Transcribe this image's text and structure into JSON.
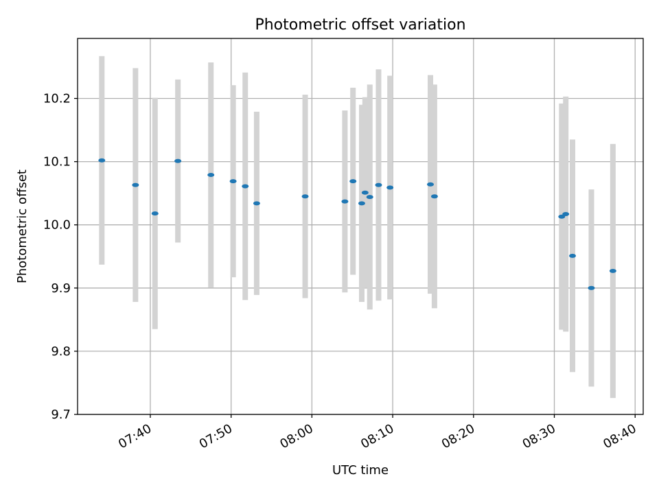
{
  "chart_data": {
    "type": "scatter",
    "title": "Photometric offset variation",
    "xlabel": "UTC time",
    "ylabel": "Photometric offset",
    "ylim": [
      9.7,
      10.295
    ],
    "xlim": [
      "07:31:00",
      "08:41:00"
    ],
    "grid": true,
    "x_ticks": [
      "07:40",
      "07:50",
      "08:00",
      "08:10",
      "08:20",
      "08:30",
      "08:40"
    ],
    "y_ticks": [
      9.7,
      9.8,
      9.9,
      10.0,
      10.1,
      10.2
    ],
    "y_tick_labels": [
      "9.7",
      "9.8",
      "9.9",
      "10.0",
      "10.1",
      "10.2"
    ],
    "point_color": "#1f77b4",
    "error_bar_color": "#d3d3d3",
    "points": [
      {
        "x": "07:34:00",
        "y": 10.102,
        "yerr": 0.165
      },
      {
        "x": "07:38:10",
        "y": 10.063,
        "yerr": 0.185
      },
      {
        "x": "07:40:35",
        "y": 10.018,
        "yerr": 0.183
      },
      {
        "x": "07:43:25",
        "y": 10.101,
        "yerr": 0.129
      },
      {
        "x": "07:47:30",
        "y": 10.079,
        "yerr": 0.178
      },
      {
        "x": "07:50:15",
        "y": 10.069,
        "yerr": 0.152
      },
      {
        "x": "07:51:45",
        "y": 10.061,
        "yerr": 0.18
      },
      {
        "x": "07:53:10",
        "y": 10.034,
        "yerr": 0.145
      },
      {
        "x": "07:59:10",
        "y": 10.045,
        "yerr": 0.161
      },
      {
        "x": "08:04:05",
        "y": 10.037,
        "yerr": 0.144
      },
      {
        "x": "08:05:05",
        "y": 10.069,
        "yerr": 0.148
      },
      {
        "x": "08:06:10",
        "y": 10.034,
        "yerr": 0.156
      },
      {
        "x": "08:06:35",
        "y": 10.051,
        "yerr": 0.151
      },
      {
        "x": "08:07:10",
        "y": 10.044,
        "yerr": 0.178
      },
      {
        "x": "08:08:15",
        "y": 10.063,
        "yerr": 0.183
      },
      {
        "x": "08:09:40",
        "y": 10.059,
        "yerr": 0.177
      },
      {
        "x": "08:14:40",
        "y": 10.064,
        "yerr": 0.173
      },
      {
        "x": "08:15:10",
        "y": 10.045,
        "yerr": 0.177
      },
      {
        "x": "08:30:55",
        "y": 10.013,
        "yerr": 0.179
      },
      {
        "x": "08:31:25",
        "y": 10.017,
        "yerr": 0.186
      },
      {
        "x": "08:32:15",
        "y": 9.951,
        "yerr": 0.184
      },
      {
        "x": "08:34:35",
        "y": 9.9,
        "yerr": 0.156
      },
      {
        "x": "08:37:15",
        "y": 9.927,
        "yerr": 0.201
      }
    ]
  }
}
